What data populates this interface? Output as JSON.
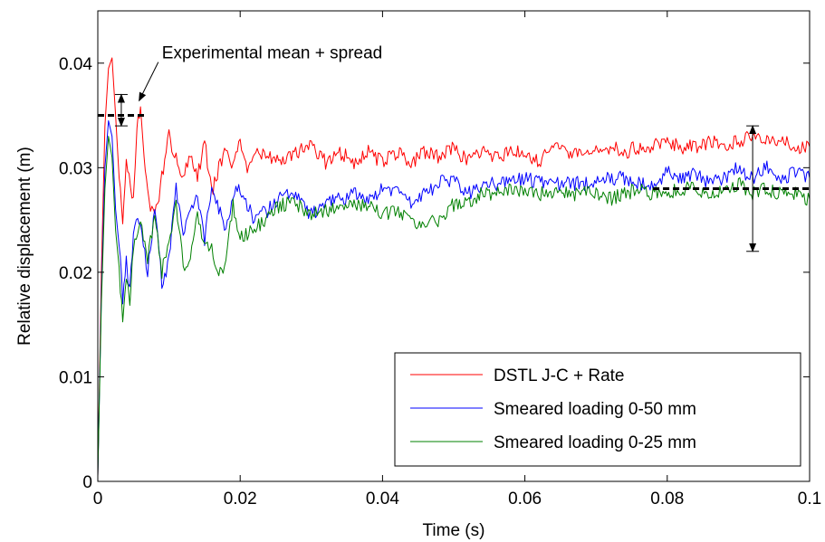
{
  "chart_data": {
    "type": "line",
    "xlabel": "Time (s)",
    "ylabel": "Relative displacement (m)",
    "xlim": [
      0,
      0.1
    ],
    "ylim": [
      0,
      0.045
    ],
    "xticks": [
      0,
      0.02,
      0.04,
      0.06,
      0.08,
      0.1
    ],
    "xtick_labels": [
      "0",
      "0.02",
      "0.04",
      "0.06",
      "0.08",
      "0.1"
    ],
    "yticks": [
      0,
      0.01,
      0.02,
      0.03,
      0.04
    ],
    "ytick_labels": [
      "0",
      "0.01",
      "0.02",
      "0.03",
      "0.04"
    ],
    "grid": false,
    "legend_position": "bottom-right",
    "series": [
      {
        "name": "DSTL J-C + Rate",
        "color": "#ff0000",
        "x": [
          0,
          0.0005,
          0.001,
          0.0015,
          0.002,
          0.0025,
          0.003,
          0.0035,
          0.004,
          0.005,
          0.0055,
          0.006,
          0.0065,
          0.007,
          0.008,
          0.009,
          0.01,
          0.011,
          0.012,
          0.013,
          0.014,
          0.015,
          0.016,
          0.017,
          0.018,
          0.019,
          0.02,
          0.021,
          0.022,
          0.024,
          0.026,
          0.028,
          0.03,
          0.032,
          0.034,
          0.036,
          0.038,
          0.04,
          0.042,
          0.044,
          0.046,
          0.048,
          0.05,
          0.052,
          0.054,
          0.056,
          0.058,
          0.06,
          0.062,
          0.064,
          0.066,
          0.068,
          0.07,
          0.072,
          0.074,
          0.076,
          0.078,
          0.08,
          0.082,
          0.084,
          0.086,
          0.088,
          0.09,
          0.092,
          0.094,
          0.096,
          0.098,
          0.1
        ],
        "values": [
          0.0005,
          0.02,
          0.034,
          0.0395,
          0.0405,
          0.035,
          0.029,
          0.0245,
          0.0305,
          0.027,
          0.034,
          0.0357,
          0.0305,
          0.0275,
          0.025,
          0.029,
          0.033,
          0.031,
          0.029,
          0.0315,
          0.029,
          0.0325,
          0.0275,
          0.03,
          0.0315,
          0.03,
          0.0325,
          0.0295,
          0.0315,
          0.031,
          0.0305,
          0.0315,
          0.032,
          0.0305,
          0.0315,
          0.0305,
          0.0315,
          0.0305,
          0.0315,
          0.0305,
          0.0315,
          0.031,
          0.032,
          0.0305,
          0.0315,
          0.031,
          0.0315,
          0.0315,
          0.0305,
          0.032,
          0.0315,
          0.031,
          0.0315,
          0.032,
          0.0315,
          0.032,
          0.032,
          0.0325,
          0.032,
          0.032,
          0.0325,
          0.032,
          0.0325,
          0.033,
          0.0325,
          0.0325,
          0.032,
          0.032
        ]
      },
      {
        "name": "Smeared loading 0-50 mm",
        "color": "#0000ff",
        "x": [
          0,
          0.0005,
          0.001,
          0.0015,
          0.002,
          0.0025,
          0.003,
          0.0035,
          0.004,
          0.0045,
          0.005,
          0.006,
          0.007,
          0.008,
          0.009,
          0.01,
          0.011,
          0.012,
          0.013,
          0.014,
          0.015,
          0.016,
          0.017,
          0.018,
          0.019,
          0.02,
          0.022,
          0.024,
          0.026,
          0.028,
          0.03,
          0.032,
          0.034,
          0.036,
          0.038,
          0.04,
          0.042,
          0.044,
          0.046,
          0.048,
          0.05,
          0.052,
          0.054,
          0.056,
          0.058,
          0.06,
          0.062,
          0.064,
          0.066,
          0.068,
          0.07,
          0.072,
          0.074,
          0.076,
          0.078,
          0.08,
          0.082,
          0.084,
          0.086,
          0.088,
          0.09,
          0.092,
          0.094,
          0.096,
          0.098,
          0.1
        ],
        "values": [
          0.0005,
          0.018,
          0.03,
          0.0345,
          0.033,
          0.026,
          0.0225,
          0.0175,
          0.021,
          0.018,
          0.024,
          0.025,
          0.02,
          0.026,
          0.019,
          0.021,
          0.028,
          0.024,
          0.0255,
          0.027,
          0.023,
          0.0285,
          0.026,
          0.024,
          0.0275,
          0.028,
          0.025,
          0.026,
          0.0275,
          0.027,
          0.0255,
          0.0265,
          0.027,
          0.0275,
          0.027,
          0.028,
          0.0275,
          0.0265,
          0.0275,
          0.0285,
          0.029,
          0.0275,
          0.0285,
          0.0285,
          0.0285,
          0.029,
          0.0285,
          0.0285,
          0.0285,
          0.0285,
          0.0285,
          0.029,
          0.029,
          0.0285,
          0.0285,
          0.0295,
          0.029,
          0.0295,
          0.0285,
          0.029,
          0.03,
          0.029,
          0.03,
          0.029,
          0.0295,
          0.029
        ]
      },
      {
        "name": "Smeared loading 0-25 mm",
        "color": "#008000",
        "x": [
          0,
          0.0005,
          0.001,
          0.0015,
          0.002,
          0.0025,
          0.003,
          0.0035,
          0.004,
          0.0045,
          0.005,
          0.006,
          0.007,
          0.008,
          0.009,
          0.01,
          0.011,
          0.012,
          0.013,
          0.014,
          0.015,
          0.016,
          0.017,
          0.018,
          0.019,
          0.02,
          0.022,
          0.024,
          0.026,
          0.028,
          0.03,
          0.032,
          0.034,
          0.036,
          0.038,
          0.04,
          0.042,
          0.044,
          0.046,
          0.048,
          0.05,
          0.052,
          0.054,
          0.056,
          0.058,
          0.06,
          0.062,
          0.064,
          0.066,
          0.068,
          0.07,
          0.072,
          0.074,
          0.076,
          0.078,
          0.08,
          0.082,
          0.084,
          0.086,
          0.088,
          0.09,
          0.092,
          0.094,
          0.096,
          0.098,
          0.1
        ],
        "values": [
          0.0005,
          0.017,
          0.028,
          0.033,
          0.031,
          0.024,
          0.0205,
          0.015,
          0.02,
          0.017,
          0.0225,
          0.0245,
          0.0215,
          0.0255,
          0.02,
          0.023,
          0.0265,
          0.0205,
          0.0215,
          0.0255,
          0.0225,
          0.0225,
          0.0195,
          0.021,
          0.0265,
          0.0235,
          0.024,
          0.0255,
          0.0265,
          0.0265,
          0.0255,
          0.026,
          0.026,
          0.0265,
          0.0265,
          0.0255,
          0.026,
          0.025,
          0.0245,
          0.025,
          0.0265,
          0.0265,
          0.0275,
          0.0275,
          0.028,
          0.0275,
          0.0275,
          0.0275,
          0.0275,
          0.0275,
          0.0275,
          0.027,
          0.0275,
          0.028,
          0.0275,
          0.0275,
          0.028,
          0.028,
          0.0275,
          0.028,
          0.0285,
          0.0275,
          0.028,
          0.0275,
          0.0275,
          0.027
        ]
      }
    ],
    "annotations": [
      {
        "text": "Experimental mean + spread",
        "mean": 0.035,
        "spread_low": 0.034,
        "spread_high": 0.037,
        "x_start": 0,
        "x_end": 0.0065,
        "bar_x": 0.0033,
        "arrow_tip": [
          0.0058,
          0.0364
        ],
        "arrow_tail": [
          0.0085,
          0.0401
        ]
      },
      {
        "text": "",
        "mean": 0.028,
        "spread_low": 0.022,
        "spread_high": 0.034,
        "x_start": 0.078,
        "x_end": 0.1,
        "bar_x": 0.092
      }
    ]
  }
}
